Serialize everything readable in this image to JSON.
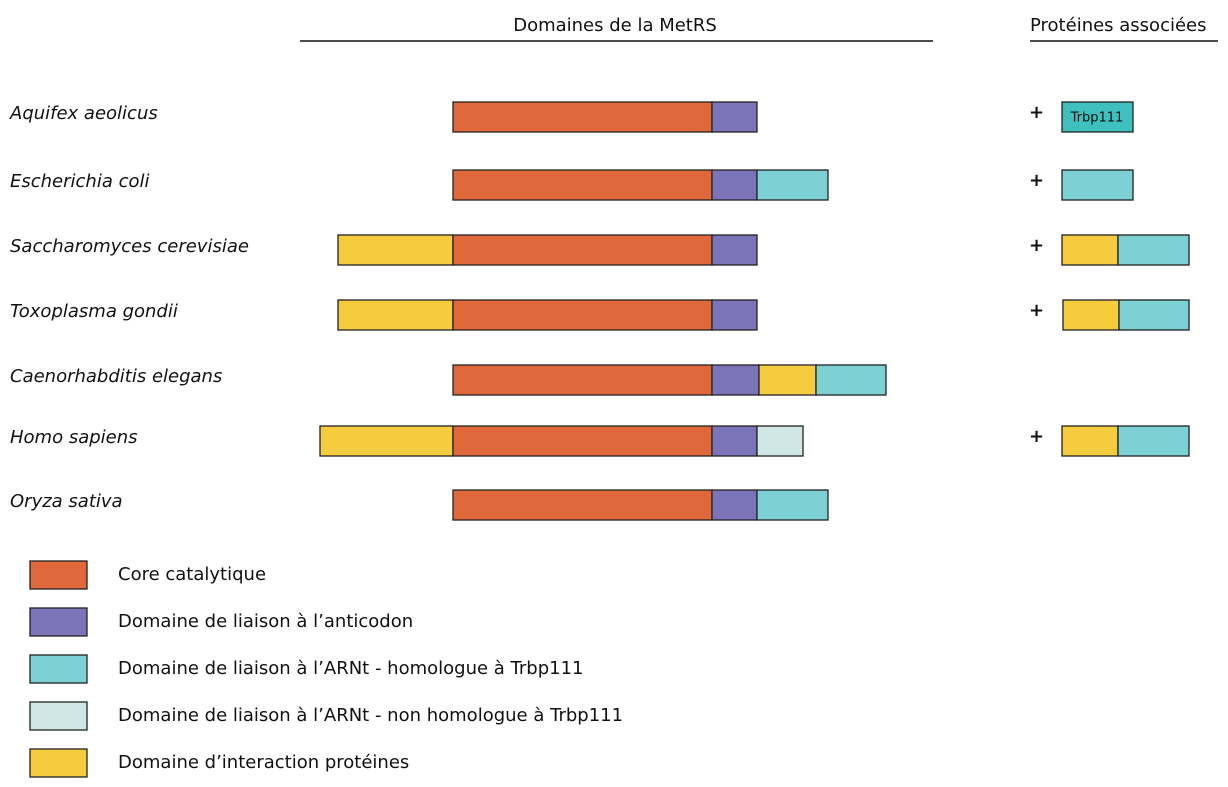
{
  "header": {
    "title": "Domaines de la MetRS"
  },
  "associated": {
    "title": "Protéines associées",
    "signs": [
      "+",
      "+",
      "+",
      "+",
      "+"
    ],
    "label": "Trbp111"
  },
  "species": [
    "Aquifex aeolicus",
    "Escherichia coli",
    "Saccharomyces cerevisiae",
    "Toxoplasma gondii",
    "Caenorhabditis elegans",
    "Homo sapiens",
    "Oryza sativa"
  ],
  "legend": [
    "Core catalytique",
    "Domaine de liaison à l’anticodon",
    "Domaine de liaison à l’ARNt - homologue à Trbp111",
    "Domaine de liaison à l’ARNt - non homologue à Trbp111",
    "Domaine d’interaction protéines"
  ]
}
